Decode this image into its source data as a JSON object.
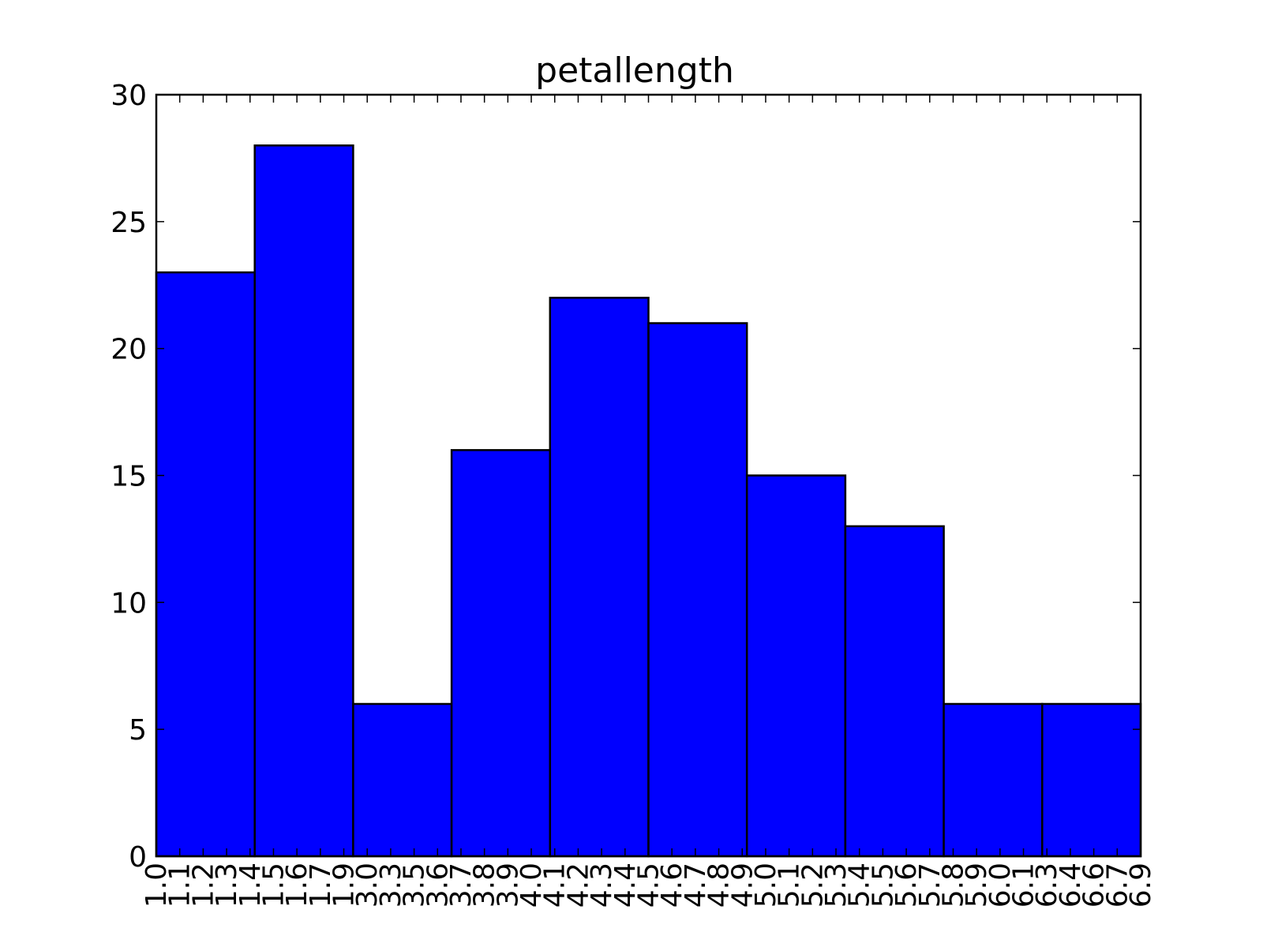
{
  "chart_data": {
    "type": "bar",
    "title": "petallength",
    "xlabel": "",
    "ylabel": "",
    "ylim": [
      0,
      30
    ],
    "yticks": [
      "0",
      "5",
      "10",
      "15",
      "20",
      "25",
      "30"
    ],
    "xlim": [
      1.0,
      6.9
    ],
    "bins": [
      {
        "start": 1.0,
        "end": 1.59,
        "value": 23
      },
      {
        "start": 1.59,
        "end": 2.18,
        "value": 28
      },
      {
        "start": 2.18,
        "end": 2.77,
        "value": 6
      },
      {
        "start": 2.77,
        "end": 3.36,
        "value": 16
      },
      {
        "start": 3.36,
        "end": 3.95,
        "value": 22
      },
      {
        "start": 3.95,
        "end": 4.54,
        "value": 21
      },
      {
        "start": 4.54,
        "end": 5.13,
        "value": 15
      },
      {
        "start": 5.13,
        "end": 5.72,
        "value": 13
      },
      {
        "start": 5.72,
        "end": 6.31,
        "value": 6
      },
      {
        "start": 6.31,
        "end": 6.9,
        "value": 6
      }
    ],
    "xtick_labels": [
      "1.0",
      "1.1",
      "1.2",
      "1.3",
      "1.4",
      "1.5",
      "1.6",
      "1.7",
      "1.9",
      "3.0",
      "3.3",
      "3.5",
      "3.6",
      "3.7",
      "3.8",
      "3.9",
      "4.0",
      "4.1",
      "4.2",
      "4.3",
      "4.4",
      "4.5",
      "4.6",
      "4.7",
      "4.8",
      "4.9",
      "5.0",
      "5.1",
      "5.2",
      "5.3",
      "5.4",
      "5.5",
      "5.6",
      "5.7",
      "5.8",
      "5.9",
      "6.0",
      "6.1",
      "6.3",
      "6.4",
      "6.6",
      "6.7",
      "6.9"
    ],
    "colors": {
      "bar_fill": "#0000ff",
      "edge": "#000000",
      "background": "#ffffff"
    },
    "grid": false
  }
}
